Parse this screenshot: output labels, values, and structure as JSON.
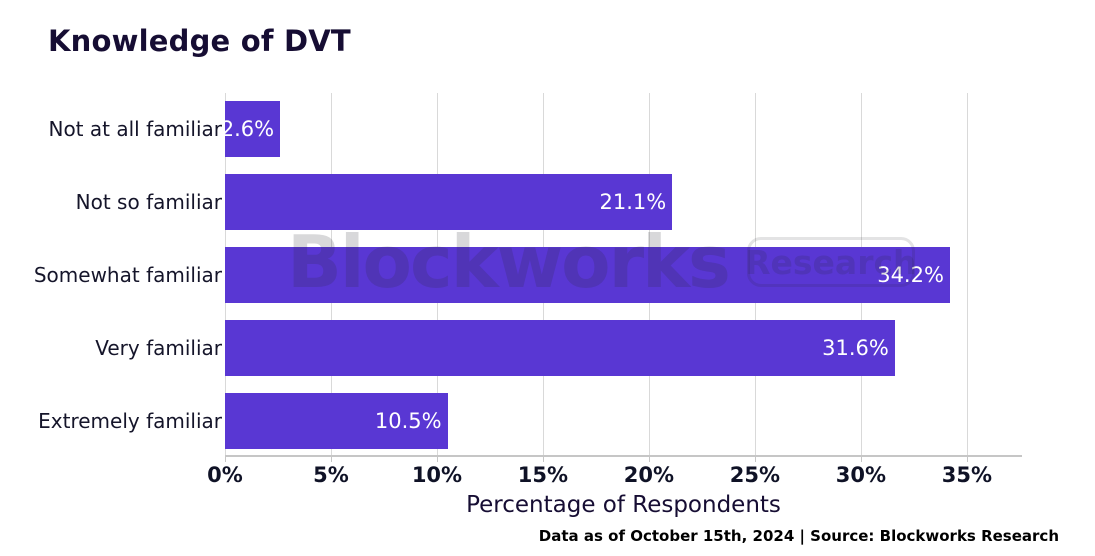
{
  "title": "Knowledge of DVT",
  "watermark": {
    "brand": "Blockworks",
    "badge": "Research"
  },
  "footer": {
    "note": "Data as of October 15th, 2024 | Source: Blockworks Research"
  },
  "colors": {
    "bar-color": "#5937d3",
    "title-color": "#160d33",
    "label-color": "#15152a",
    "tick-color": "#0f1226",
    "grid-color": "#d9d9d9",
    "axis-line": "#c6c6c6",
    "value-label-color": "#ffffff"
  },
  "chart_data": {
    "type": "bar",
    "orientation": "horizontal",
    "title": "Knowledge of DVT",
    "categories": [
      "Not at all familiar",
      "Not so familiar",
      "Somewhat familiar",
      "Very familiar",
      "Extremely familiar"
    ],
    "values": [
      2.6,
      21.1,
      34.2,
      31.6,
      10.5
    ],
    "value_labels": [
      "2.6%",
      "21.1%",
      "34.2%",
      "31.6%",
      "10.5%"
    ],
    "xlabel": "Percentage of Respondents",
    "ylabel": "",
    "xlim": [
      0,
      37.6
    ],
    "x_tick_values": [
      0,
      5,
      10,
      15,
      20,
      25,
      30,
      35
    ],
    "x_tick_labels": [
      "0%",
      "5%",
      "10%",
      "15%",
      "20%",
      "25%",
      "30%",
      "35%"
    ],
    "grid": "vertical-gridlines-on",
    "legend": "none",
    "value_labels_position": "inside-end",
    "bar_color": "#5937d3"
  }
}
